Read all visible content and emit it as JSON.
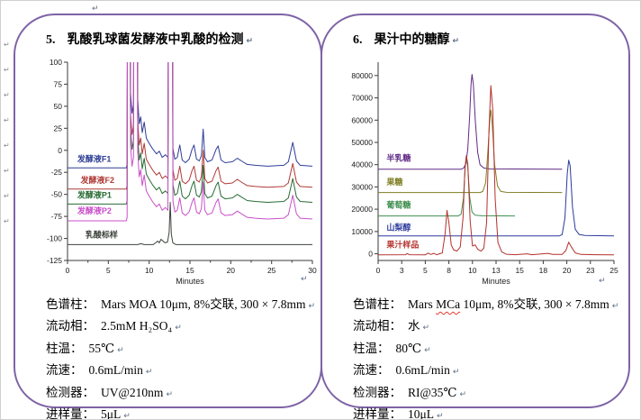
{
  "marks": {
    "eol": "↵",
    "margin": [
      "↵",
      "↵",
      "↵",
      "↵",
      "↵",
      "↵",
      "↵",
      "↵"
    ]
  },
  "panels": [
    {
      "title_number": "5.",
      "title": "乳酸乳球菌发酵液中乳酸的检测",
      "specs": [
        {
          "label": "色谱柱：",
          "value": "Mars MOA 10μm, 8%交联, 300 × 7.8mm"
        },
        {
          "label": "流动相：",
          "value": "2.5mM H₂SO₄"
        },
        {
          "label": "柱温：",
          "value": "55℃"
        },
        {
          "label": "流速：",
          "value": "0.6mL/min"
        },
        {
          "label": "检测器：",
          "value": "UV@210nm"
        },
        {
          "label": "进样量：",
          "value": "5μL"
        }
      ]
    },
    {
      "title_number": "6.",
      "title": "果汁中的糖醇",
      "specs": [
        {
          "label": "色谱柱：",
          "parts": [
            {
              "t": "Mars "
            },
            {
              "t": "MCa",
              "wavy": true
            },
            {
              "t": " 10μm, 8%交联, 300 × 7.8mm"
            }
          ]
        },
        {
          "label": "流动相：",
          "value": "水"
        },
        {
          "label": "柱温：",
          "value": "80℃"
        },
        {
          "label": "流速：",
          "value": "0.6mL/min"
        },
        {
          "label": "检测器：",
          "value": "RI@35℃"
        },
        {
          "label": "进样量：",
          "value": "10μL"
        }
      ]
    }
  ],
  "chart_data": [
    {
      "type": "line",
      "title": "乳酸乳球菌发酵液中乳酸的检测 chromatogram",
      "xlabel": "Minutes",
      "xlim": [
        0,
        30
      ],
      "ylim": [
        -125,
        100
      ],
      "grid": false,
      "legend_position": "inline-left",
      "layout": {
        "ml": 34,
        "mr": 14,
        "mt": 6,
        "mb": 32
      },
      "ytick_vals": [
        100,
        75,
        50,
        25,
        0,
        -25,
        -50,
        -75,
        -100,
        -125
      ],
      "ytick_labels": [
        "100",
        "75",
        "50",
        "25",
        "0",
        "-25",
        "-50",
        "-75",
        "-100",
        "-125"
      ],
      "xtick_vals": [
        0,
        5,
        10,
        15,
        20,
        25,
        30
      ],
      "xtick_labels": [
        "0",
        "5",
        "10",
        "15",
        "20",
        "25",
        "30"
      ],
      "xminor": [
        2.5,
        7.5,
        12.5,
        17.5,
        22.5,
        27.5
      ],
      "axis_color": "#3a3a3a",
      "profiles": {
        "ferment": [
          [
            0,
            0
          ],
          [
            7.2,
            0
          ],
          [
            7.3,
            4
          ],
          [
            7.38,
            400
          ],
          [
            7.62,
            400
          ],
          [
            7.72,
            85
          ],
          [
            7.9,
            62
          ],
          [
            8.08,
            72
          ],
          [
            8.16,
            400
          ],
          [
            8.5,
            400
          ],
          [
            8.6,
            78
          ],
          [
            8.78,
            50
          ],
          [
            8.97,
            58
          ],
          [
            9.15,
            40
          ],
          [
            9.4,
            52
          ],
          [
            9.65,
            34
          ],
          [
            10,
            28
          ],
          [
            10.4,
            22
          ],
          [
            10.9,
            16
          ],
          [
            11.25,
            19
          ],
          [
            11.6,
            12
          ],
          [
            12,
            15
          ],
          [
            12.3,
            12
          ],
          [
            12.42,
            400
          ],
          [
            12.8,
            400
          ],
          [
            12.92,
            22
          ],
          [
            13.15,
            10
          ],
          [
            13.45,
            12
          ],
          [
            13.75,
            26
          ],
          [
            14.05,
            9
          ],
          [
            14.45,
            6
          ],
          [
            14.9,
            10
          ],
          [
            15.25,
            21
          ],
          [
            15.5,
            26
          ],
          [
            15.8,
            10
          ],
          [
            16.15,
            8
          ],
          [
            16.4,
            14
          ],
          [
            16.62,
            44
          ],
          [
            16.82,
            12
          ],
          [
            17.15,
            7
          ],
          [
            17.7,
            9
          ],
          [
            18.2,
            21
          ],
          [
            18.45,
            25
          ],
          [
            18.8,
            9
          ],
          [
            19.3,
            6
          ],
          [
            20.2,
            7
          ],
          [
            20.8,
            11
          ],
          [
            21.3,
            8
          ],
          [
            22,
            4
          ],
          [
            23,
            3
          ],
          [
            24.5,
            2
          ],
          [
            26.5,
            3
          ],
          [
            27.05,
            7
          ],
          [
            27.6,
            29
          ],
          [
            28.05,
            8
          ],
          [
            28.5,
            3
          ],
          [
            30,
            2
          ]
        ],
        "standard": [
          [
            0,
            0
          ],
          [
            8.6,
            0
          ],
          [
            9.0,
            1
          ],
          [
            9.4,
            0
          ],
          [
            10.5,
            0
          ],
          [
            10.8,
            2
          ],
          [
            11.05,
            4
          ],
          [
            11.25,
            2
          ],
          [
            11.45,
            6
          ],
          [
            11.7,
            4
          ],
          [
            11.95,
            2
          ],
          [
            12.25,
            3
          ],
          [
            12.45,
            14
          ],
          [
            12.58,
            48
          ],
          [
            12.72,
            12
          ],
          [
            12.9,
            2
          ],
          [
            13.3,
            0
          ],
          [
            30,
            0
          ]
        ]
      },
      "series": [
        {
          "name": "发酵液F1",
          "color": "#2e3e96",
          "baseline": -20,
          "label_pos": [
            1.2,
            -13
          ],
          "profile": "ferment"
        },
        {
          "name": "发酵液F2",
          "color": "#b03a36",
          "baseline": -44,
          "label_pos": [
            1.6,
            -37
          ],
          "profile": "ferment"
        },
        {
          "name": "发酵液P1",
          "color": "#276b33",
          "baseline": -61,
          "label_pos": [
            1.2,
            -54
          ],
          "profile": "ferment"
        },
        {
          "name": "发酵液P2",
          "color": "#c94fc9",
          "baseline": -80,
          "label_pos": [
            1.2,
            -72
          ],
          "profile": "ferment"
        },
        {
          "name": "乳酸标样",
          "color": "#3c423a",
          "baseline": -107,
          "label_pos": [
            2.2,
            -99
          ],
          "profile": "standard"
        }
      ]
    },
    {
      "type": "line",
      "title": "果汁中的糖醇 chromatogram",
      "xlabel": "Minutes",
      "xlim": [
        0,
        25
      ],
      "ylim": [
        -3000,
        86000
      ],
      "grid": false,
      "legend_position": "inline-left",
      "layout": {
        "ml": 46,
        "mr": 14,
        "mt": 10,
        "mb": 32
      },
      "ytick_vals": [
        80000,
        70000,
        60000,
        50000,
        40000,
        30000,
        20000,
        10000,
        0
      ],
      "ytick_labels": [
        "80000",
        "70000",
        "60000",
        "50000",
        "40000",
        "30000",
        "20000",
        "10000",
        "0"
      ],
      "xtick_vals": [
        0,
        2.5,
        5,
        7.5,
        10,
        12.5,
        15,
        17.5,
        20,
        22.5,
        25
      ],
      "xtick_labels": [
        "0",
        "3",
        "5",
        "8",
        "10",
        "13",
        "15",
        "18",
        "20",
        "23",
        "25"
      ],
      "xminor": [],
      "axis_color": "#3a3a3a",
      "series": [
        {
          "name": "半乳糖",
          "color": "#5f2a87",
          "baseline": 0,
          "label_pos": [
            0.9,
            41800
          ],
          "points": [
            [
              0,
              38000
            ],
            [
              8.8,
              38000
            ],
            [
              9.05,
              38400
            ],
            [
              9.3,
              40500
            ],
            [
              9.5,
              47000
            ],
            [
              9.7,
              62000
            ],
            [
              9.85,
              76000
            ],
            [
              9.95,
              80500
            ],
            [
              10.1,
              76000
            ],
            [
              10.3,
              60000
            ],
            [
              10.55,
              45500
            ],
            [
              10.8,
              40000
            ],
            [
              11.2,
              38500
            ],
            [
              11.8,
              38100
            ],
            [
              19.5,
              38000
            ]
          ]
        },
        {
          "name": "果糖",
          "color": "#7e7d22",
          "baseline": 0,
          "label_pos": [
            0.9,
            31000
          ],
          "points": [
            [
              0,
              27500
            ],
            [
              10.8,
              27500
            ],
            [
              11.1,
              28000
            ],
            [
              11.4,
              32000
            ],
            [
              11.65,
              47000
            ],
            [
              11.85,
              61000
            ],
            [
              11.95,
              64500
            ],
            [
              12.1,
              58000
            ],
            [
              12.35,
              40000
            ],
            [
              12.65,
              30500
            ],
            [
              13.0,
              28000
            ],
            [
              13.6,
              27600
            ],
            [
              19.5,
              27500
            ]
          ]
        },
        {
          "name": "葡萄糖",
          "color": "#3f8f4f",
          "baseline": 0,
          "label_pos": [
            0.9,
            20600
          ],
          "points": [
            [
              0,
              17000
            ],
            [
              8.5,
              17000
            ],
            [
              8.8,
              17800
            ],
            [
              9.05,
              25000
            ],
            [
              9.25,
              40000
            ],
            [
              9.35,
              43500
            ],
            [
              9.5,
              39000
            ],
            [
              9.7,
              25500
            ],
            [
              9.95,
              18800
            ],
            [
              10.3,
              17300
            ],
            [
              11.0,
              17050
            ],
            [
              14.5,
              17000
            ]
          ]
        },
        {
          "name": "山梨醇",
          "color": "#2b3a9b",
          "baseline": 0,
          "label_pos": [
            0.9,
            10600
          ],
          "points": [
            [
              0,
              8000
            ],
            [
              19.2,
              8000
            ],
            [
              19.5,
              8600
            ],
            [
              19.8,
              16000
            ],
            [
              20.05,
              36000
            ],
            [
              20.2,
              42000
            ],
            [
              20.35,
              39500
            ],
            [
              20.6,
              21000
            ],
            [
              20.9,
              11000
            ],
            [
              21.3,
              8700
            ],
            [
              21.9,
              8200
            ],
            [
              25,
              8000
            ]
          ]
        },
        {
          "name": "果汁样品",
          "color": "#b4312e",
          "baseline": 0,
          "label_pos": [
            0.9,
            2900
          ],
          "points": [
            [
              0,
              -500
            ],
            [
              2.9,
              -400
            ],
            [
              3.1,
              100
            ],
            [
              3.3,
              -400
            ],
            [
              5.0,
              -500
            ],
            [
              5.3,
              300
            ],
            [
              5.6,
              -300
            ],
            [
              5.9,
              200
            ],
            [
              6.2,
              -400
            ],
            [
              6.8,
              400
            ],
            [
              7.1,
              9000
            ],
            [
              7.3,
              19500
            ],
            [
              7.5,
              14000
            ],
            [
              7.75,
              4000
            ],
            [
              8.0,
              1800
            ],
            [
              8.35,
              1200
            ],
            [
              8.7,
              3000
            ],
            [
              9.0,
              16000
            ],
            [
              9.2,
              38000
            ],
            [
              9.35,
              44000
            ],
            [
              9.5,
              40500
            ],
            [
              9.75,
              15000
            ],
            [
              10.0,
              3500
            ],
            [
              10.3,
              4000
            ],
            [
              10.55,
              2000
            ],
            [
              10.9,
              1200
            ],
            [
              11.2,
              2500
            ],
            [
              11.5,
              14000
            ],
            [
              11.75,
              55000
            ],
            [
              11.95,
              75500
            ],
            [
              12.15,
              65000
            ],
            [
              12.4,
              25000
            ],
            [
              12.7,
              5000
            ],
            [
              13.1,
              800
            ],
            [
              13.6,
              -200
            ],
            [
              14.5,
              -400
            ],
            [
              15.8,
              0
            ],
            [
              16.3,
              -400
            ],
            [
              17.3,
              -100
            ],
            [
              18.0,
              200
            ],
            [
              18.5,
              -300
            ],
            [
              19.5,
              -300
            ],
            [
              19.9,
              1500
            ],
            [
              20.2,
              5200
            ],
            [
              20.5,
              3000
            ],
            [
              20.9,
              400
            ],
            [
              21.5,
              -300
            ],
            [
              23,
              -400
            ],
            [
              25,
              -500
            ]
          ]
        }
      ]
    }
  ]
}
